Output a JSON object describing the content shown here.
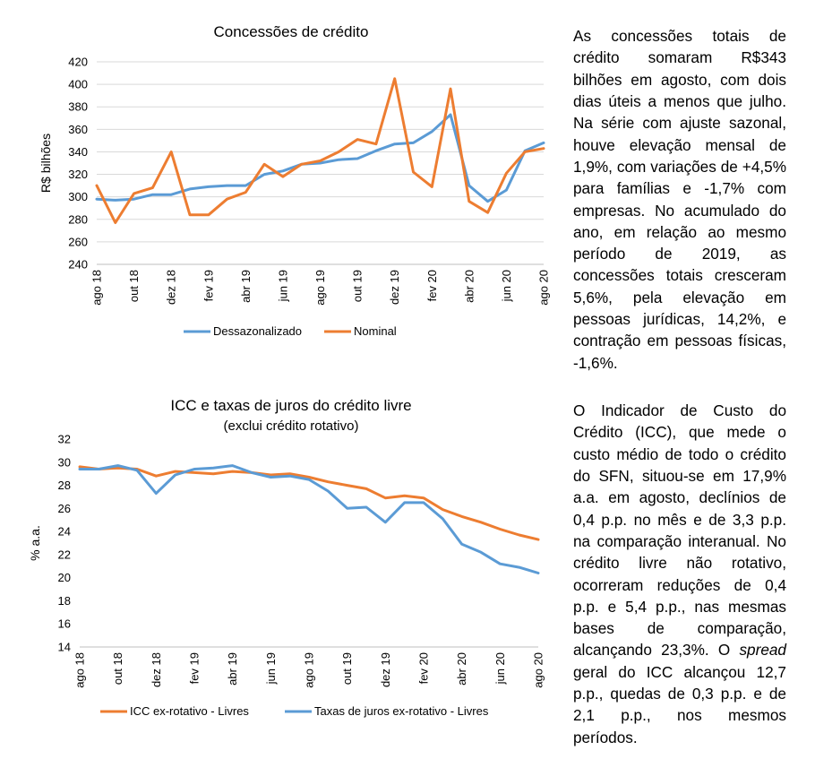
{
  "chart_data": [
    {
      "type": "line",
      "title": "Concessões de crédito",
      "subtitle": "",
      "ylabel": "R$ bilhões",
      "xlabel": "",
      "ylim": [
        240,
        420
      ],
      "yticks": [
        240,
        260,
        280,
        300,
        320,
        340,
        360,
        380,
        400,
        420
      ],
      "x": [
        "ago 18",
        "set 18",
        "out 18",
        "nov 18",
        "dez 18",
        "jan 19",
        "fev 19",
        "mar 19",
        "abr 19",
        "mai 19",
        "jun 19",
        "jul 19",
        "ago 19",
        "set 19",
        "out 19",
        "nov 19",
        "dez 19",
        "jan 20",
        "fev 20",
        "mar 20",
        "abr 20",
        "mai 20",
        "jun 20",
        "jul 20",
        "ago 20"
      ],
      "xtick_labels": [
        "ago 18",
        "out 18",
        "dez 18",
        "fev 19",
        "abr 19",
        "jun 19",
        "ago 19",
        "out 19",
        "dez 19",
        "fev 20",
        "abr 20",
        "jun 20",
        "ago 20"
      ],
      "grid": true,
      "legend": "bottom",
      "series": [
        {
          "name": "Dessazonalizado",
          "color": "#5B9BD5",
          "values": [
            298,
            297,
            298,
            302,
            302,
            307,
            309,
            310,
            310,
            320,
            323,
            329,
            330,
            333,
            334,
            341,
            347,
            348,
            358,
            373,
            310,
            296,
            306,
            341,
            348
          ]
        },
        {
          "name": "Nominal",
          "color": "#ED7D31",
          "values": [
            310,
            277,
            303,
            308,
            340,
            284,
            284,
            298,
            304,
            329,
            318,
            329,
            332,
            340,
            351,
            347,
            405,
            322,
            309,
            396,
            296,
            286,
            321,
            340,
            343
          ]
        }
      ]
    },
    {
      "type": "line",
      "title": "ICC e taxas de juros do crédito livre",
      "subtitle": "(exclui crédito rotativo)",
      "ylabel": "% a.a.",
      "xlabel": "",
      "ylim": [
        14,
        32
      ],
      "yticks": [
        14,
        16,
        18,
        20,
        22,
        24,
        26,
        28,
        30,
        32
      ],
      "x": [
        "ago 18",
        "set 18",
        "out 18",
        "nov 18",
        "dez 18",
        "jan 19",
        "fev 19",
        "mar 19",
        "abr 19",
        "mai 19",
        "jun 19",
        "jul 19",
        "ago 19",
        "set 19",
        "out 19",
        "nov 19",
        "dez 19",
        "jan 20",
        "fev 20",
        "mar 20",
        "abr 20",
        "mai 20",
        "jun 20",
        "jul 20",
        "ago 20"
      ],
      "xtick_labels": [
        "ago 18",
        "out 18",
        "dez 18",
        "fev 19",
        "abr 19",
        "jun 19",
        "ago 19",
        "out 19",
        "dez 19",
        "fev 20",
        "abr 20",
        "jun 20",
        "ago 20"
      ],
      "grid": false,
      "legend": "bottom",
      "series": [
        {
          "name": "ICC ex-rotativo - Livres",
          "color": "#ED7D31",
          "values": [
            29.6,
            29.4,
            29.5,
            29.4,
            28.8,
            29.2,
            29.1,
            29.0,
            29.2,
            29.1,
            28.9,
            29.0,
            28.7,
            28.3,
            28.0,
            27.7,
            26.9,
            27.1,
            26.9,
            25.9,
            25.3,
            24.8,
            24.2,
            23.7,
            23.3
          ]
        },
        {
          "name": "Taxas de juros ex-rotativo - Livres",
          "color": "#5B9BD5",
          "values": [
            29.4,
            29.4,
            29.7,
            29.3,
            27.3,
            28.9,
            29.4,
            29.5,
            29.7,
            29.1,
            28.7,
            28.8,
            28.5,
            27.5,
            26.0,
            26.1,
            24.8,
            26.5,
            26.5,
            25.1,
            22.9,
            22.2,
            21.2,
            20.9,
            20.4
          ]
        }
      ]
    }
  ],
  "text": {
    "para1": "As concessões totais de crédito somaram R$343 bilhões em agosto, com dois dias úteis a menos que julho. Na série com ajuste sazonal, houve elevação mensal de 1,9%, com variações de +4,5% para famílias e -1,7% com empresas. No acumulado do ano, em relação ao mesmo período de 2019, as concessões totais cresceram 5,6%, pela elevação em pessoas jurídicas, 14,2%, e contração em pessoas físicas, -1,6%.",
    "para2_before": "O Indicador de Custo do Crédito (ICC), que mede o custo médio de todo o crédito do SFN, situou-se em 17,9% a.a. em agosto, declínios de 0,4 p.p. no mês e de 3,3 p.p. na comparação interanual. No crédito livre não rotativo, ocorreram reduções de 0,4 p.p. e 5,4 p.p., nas mesmas bases de comparação, alcançando 23,3%. O ",
    "para2_italic": "spread",
    "para2_after": " geral do ICC alcançou 12,7 p.p., quedas de 0,3 p.p. e de 2,1 p.p., nos mesmos períodos."
  }
}
